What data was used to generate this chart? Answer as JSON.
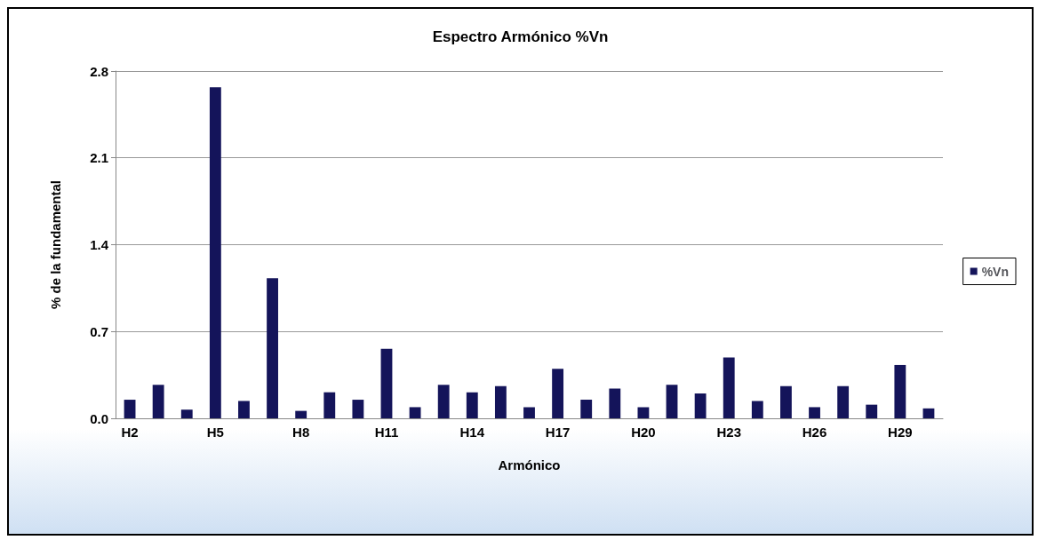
{
  "chart_data": {
    "type": "bar",
    "title": "Espectro Armónico %Vn",
    "xlabel": "Armónico",
    "ylabel": "% de la fundamental",
    "categories": [
      "H2",
      null,
      null,
      "H5",
      null,
      null,
      "H8",
      null,
      null,
      "H11",
      null,
      null,
      "H14",
      null,
      null,
      "H17",
      null,
      null,
      "H20",
      null,
      null,
      "H23",
      null,
      null,
      "H26",
      null,
      null,
      "H29",
      null
    ],
    "series": [
      {
        "name": "%Vn",
        "color": "#14145a",
        "values": [
          0.15,
          0.27,
          0.07,
          2.67,
          0.14,
          1.13,
          0.06,
          0.21,
          0.15,
          0.56,
          0.09,
          0.27,
          0.21,
          0.26,
          0.09,
          0.4,
          0.15,
          0.24,
          0.09,
          0.27,
          0.2,
          0.49,
          0.14,
          0.26,
          0.09,
          0.26,
          0.11,
          0.43,
          0.08
        ]
      }
    ],
    "ylim": [
      0,
      2.8
    ],
    "yticks": [
      {
        "value": 0,
        "label": "0.0"
      },
      {
        "value": 0.7,
        "label": "0.7"
      },
      {
        "value": 1.4,
        "label": "1.4"
      },
      {
        "value": 2.1,
        "label": "2.1"
      },
      {
        "value": 2.8,
        "label": "2.8"
      }
    ],
    "grid": "y",
    "legend": "right"
  }
}
